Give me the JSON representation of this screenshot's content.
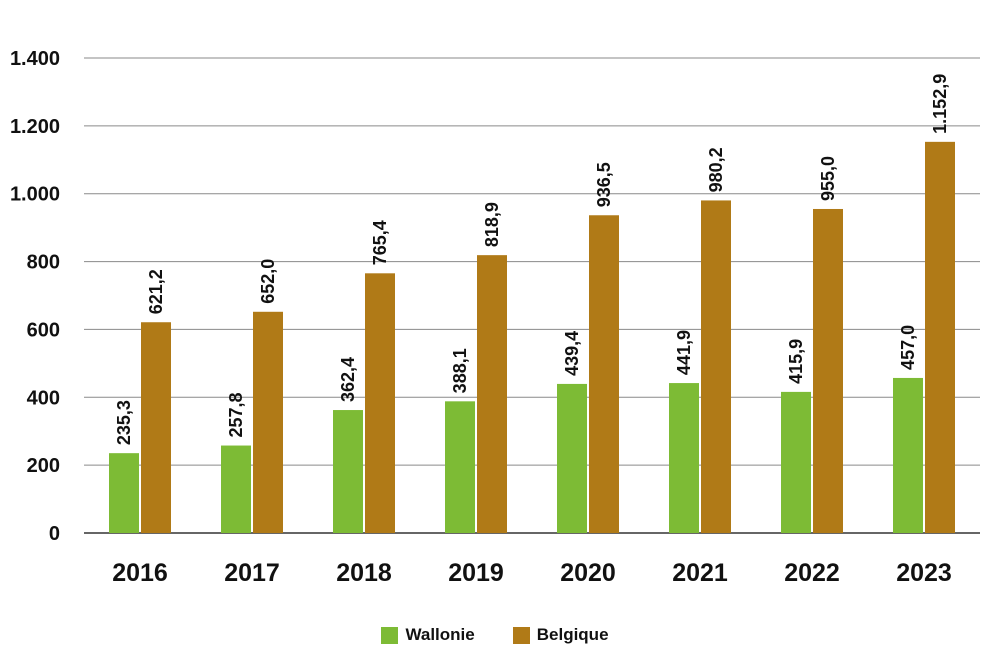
{
  "chart_data": {
    "type": "bar",
    "categories": [
      "2016",
      "2017",
      "2018",
      "2019",
      "2020",
      "2021",
      "2022",
      "2023"
    ],
    "series": [
      {
        "name": "Wallonie",
        "color": "#7dbb35",
        "values": [
          235.3,
          257.8,
          362.4,
          388.1,
          439.4,
          441.9,
          415.9,
          457.0
        ],
        "labels": [
          "235,3",
          "257,8",
          "362,4",
          "388,1",
          "439,4",
          "441,9",
          "415,9",
          "457,0"
        ]
      },
      {
        "name": "Belgique",
        "color": "#b07a17",
        "values": [
          621.2,
          652.0,
          765.4,
          818.9,
          936.5,
          980.2,
          955.0,
          1152.9
        ],
        "labels": [
          "621,2",
          "652,0",
          "765,4",
          "818,9",
          "936,5",
          "980,2",
          "955,0",
          "1.152,9"
        ]
      }
    ],
    "ylim": [
      0,
      1400
    ],
    "yticks": [
      0,
      200,
      400,
      600,
      800,
      1000,
      1200,
      1400
    ],
    "ytick_labels": [
      "0",
      "200",
      "400",
      "600",
      "800",
      "1.000",
      "1.200",
      "1.400"
    ],
    "grid": true,
    "legend_position": "bottom-center"
  }
}
